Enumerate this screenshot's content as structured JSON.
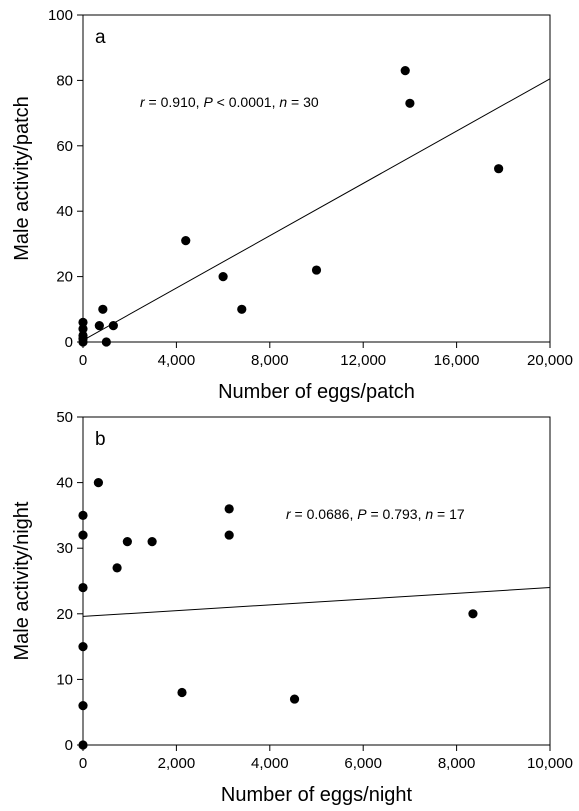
{
  "chart_data": [
    {
      "type": "scatter",
      "panel_label": "a",
      "xlabel": "Number of eggs/patch",
      "ylabel": "Male activity/patch",
      "xlim": [
        0,
        20000
      ],
      "ylim": [
        0,
        100
      ],
      "xticks": [
        0,
        4000,
        8000,
        12000,
        16000,
        20000
      ],
      "xtick_labels": [
        "0",
        "4,000",
        "8,000",
        "12,000",
        "16,000",
        "20,000"
      ],
      "yticks": [
        0,
        20,
        40,
        60,
        80,
        100
      ],
      "ytick_labels": [
        "0",
        "20",
        "40",
        "60",
        "80",
        "100"
      ],
      "annotation": {
        "r_sym": "r",
        "r_text": " = 0.910, ",
        "p_sym": "P",
        "p_text": " < 0.0001, ",
        "n_sym": "n",
        "n_text": " = 30",
        "position": "upper-left"
      },
      "points": [
        {
          "x": 0,
          "y": 0
        },
        {
          "x": 0,
          "y": 1
        },
        {
          "x": 0,
          "y": 2
        },
        {
          "x": 0,
          "y": 4
        },
        {
          "x": 0,
          "y": 6
        },
        {
          "x": 700,
          "y": 5
        },
        {
          "x": 850,
          "y": 10
        },
        {
          "x": 1000,
          "y": 0
        },
        {
          "x": 1300,
          "y": 5
        },
        {
          "x": 4400,
          "y": 31
        },
        {
          "x": 6000,
          "y": 20
        },
        {
          "x": 6800,
          "y": 10
        },
        {
          "x": 10000,
          "y": 22
        },
        {
          "x": 13800,
          "y": 83
        },
        {
          "x": 14000,
          "y": 73
        },
        {
          "x": 17800,
          "y": 53
        }
      ],
      "regression_line": {
        "x": [
          0,
          20000
        ],
        "y": [
          0.5,
          80.5
        ]
      },
      "grid": false,
      "legend": "none"
    },
    {
      "type": "scatter",
      "panel_label": "b",
      "xlabel": "Number of eggs/night",
      "ylabel": "Male activity/night",
      "xlim": [
        0,
        10000
      ],
      "ylim": [
        0,
        50
      ],
      "xticks": [
        0,
        2000,
        4000,
        6000,
        8000,
        10000
      ],
      "xtick_labels": [
        "0",
        "2,000",
        "4,000",
        "6,000",
        "8,000",
        "10,000"
      ],
      "yticks": [
        0,
        10,
        20,
        30,
        40,
        50
      ],
      "ytick_labels": [
        "0",
        "10",
        "20",
        "30",
        "40",
        "50"
      ],
      "annotation": {
        "r_sym": "r",
        "r_text": " = 0.0686, ",
        "p_sym": "P",
        "p_text": " = 0.793, ",
        "n_sym": "n",
        "n_text": " = 17",
        "position": "upper-right"
      },
      "points": [
        {
          "x": 0,
          "y": 0
        },
        {
          "x": 0,
          "y": 6
        },
        {
          "x": 0,
          "y": 15
        },
        {
          "x": 0,
          "y": 24
        },
        {
          "x": 0,
          "y": 32
        },
        {
          "x": 0,
          "y": 35
        },
        {
          "x": 330,
          "y": 40
        },
        {
          "x": 730,
          "y": 27
        },
        {
          "x": 950,
          "y": 31
        },
        {
          "x": 1480,
          "y": 31
        },
        {
          "x": 2120,
          "y": 8
        },
        {
          "x": 3130,
          "y": 36
        },
        {
          "x": 3130,
          "y": 32
        },
        {
          "x": 4530,
          "y": 7
        },
        {
          "x": 8350,
          "y": 20
        }
      ],
      "regression_line": {
        "x": [
          0,
          10000
        ],
        "y": [
          19.6,
          24.0
        ]
      },
      "grid": false,
      "legend": "none"
    }
  ]
}
